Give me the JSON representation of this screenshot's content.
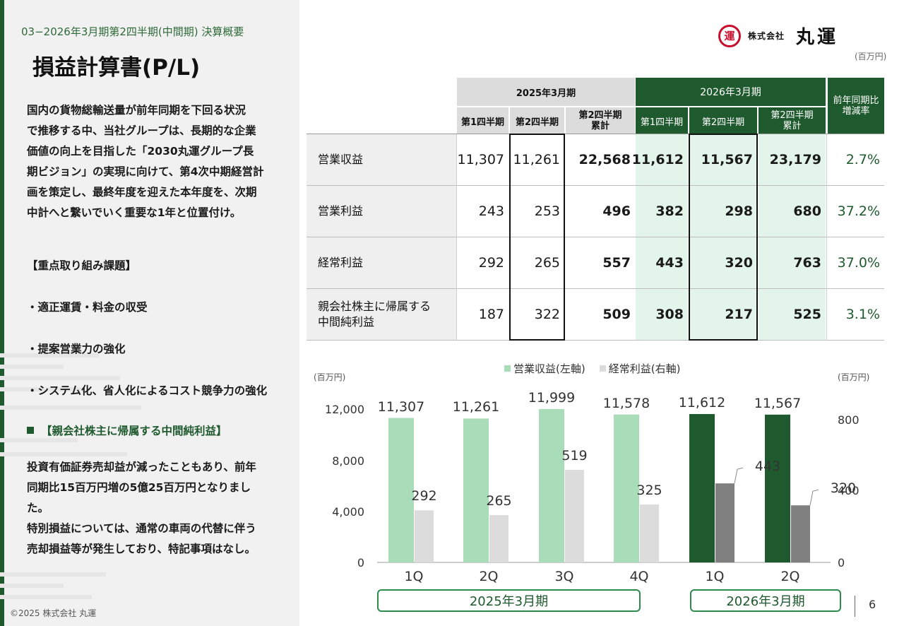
{
  "header": {
    "section_label": "03−2026年3月期第2四半期(中間期) 決算概要",
    "title": "損益計算書(P/L)",
    "logo_mark": "運",
    "company_prefix": "株式会社",
    "company_name": "丸運",
    "unit": "(百万円)"
  },
  "left": {
    "intro_lines": [
      "国内の貨物総輸送量が前年同期を下回る状況",
      "で推移する中、当社グループは、長期的な企業",
      "価値の向上を目指した「2030丸運グループ長",
      "期ビジョン」の実現に向けて、第4次中期経営計",
      "画を策定し、最終年度を迎えた本年度を、次期",
      "中計へと繋いでいく重要な1年と位置付け。"
    ],
    "focus_heading": "【重点取り組み課題】",
    "focus_items": [
      "・適正運賃・料金の収受",
      "・提案営業力の強化",
      "・システム化、省人化によるコスト競争力の強化"
    ],
    "highlight_heading": "【親会社株主に帰属する中間純利益】",
    "detail_lines": [
      "投資有価証券売却益が減ったこともあり、前年",
      "同期比15百万円増の5億25百万円となりまし",
      "た。",
      "特別損益については、通常の車両の代替に伴う",
      "売却損益等が発生しており、特記事項はなし。"
    ],
    "copyright": "©2025 株式会社 丸運"
  },
  "table": {
    "period_prev": "2025年3月期",
    "period_curr": "2026年3月期",
    "yoy_header_1": "前年同期比",
    "yoy_header_2": "増減率",
    "sub_q1": "第1四半期",
    "sub_q2": "第2四半期",
    "sub_cum_1": "第2四半期",
    "sub_cum_2": "累計",
    "rows": [
      {
        "label_1": "営業収益",
        "label_2": "",
        "prev_q1": "11,307",
        "prev_q2": "11,261",
        "prev_cum": "22,568",
        "curr_q1": "11,612",
        "curr_q2": "11,567",
        "curr_cum": "23,179",
        "yoy": "2.7%"
      },
      {
        "label_1": "営業利益",
        "label_2": "",
        "prev_q1": "243",
        "prev_q2": "253",
        "prev_cum": "496",
        "curr_q1": "382",
        "curr_q2": "298",
        "curr_cum": "680",
        "yoy": "37.2%"
      },
      {
        "label_1": "経常利益",
        "label_2": "",
        "prev_q1": "292",
        "prev_q2": "265",
        "prev_cum": "557",
        "curr_q1": "443",
        "curr_q2": "320",
        "curr_cum": "763",
        "yoy": "37.0%"
      },
      {
        "label_1": "親会社株主に帰属する",
        "label_2": "中間純利益",
        "prev_q1": "187",
        "prev_q2": "322",
        "prev_cum": "509",
        "curr_q1": "308",
        "curr_q2": "217",
        "curr_cum": "525",
        "yoy": "3.1%"
      }
    ]
  },
  "chart_data": {
    "type": "bar",
    "categories": [
      "1Q",
      "2Q",
      "3Q",
      "4Q",
      "1Q",
      "2Q"
    ],
    "period_groups": [
      "2025年3月期",
      "2026年3月期"
    ],
    "series": [
      {
        "name": "営業収益(左軸)",
        "axis": "left",
        "values": [
          11307,
          11261,
          11999,
          11578,
          11612,
          11567
        ],
        "value_labels": [
          "11,307",
          "11,261",
          "11,999",
          "11,578",
          "11,612",
          "11,567"
        ],
        "colors": [
          "#a9dcb9",
          "#a9dcb9",
          "#a9dcb9",
          "#a9dcb9",
          "#1f5a2e",
          "#1f5a2e"
        ]
      },
      {
        "name": "経常利益(右軸)",
        "axis": "right",
        "values": [
          292,
          265,
          519,
          325,
          443,
          320
        ],
        "value_labels": [
          "292",
          "265",
          "519",
          "325",
          "443",
          "320"
        ],
        "colors": [
          "#dcdcdc",
          "#dcdcdc",
          "#dcdcdc",
          "#dcdcdc",
          "#808080",
          "#808080"
        ]
      }
    ],
    "legend_colors": [
      "#a9dcb9",
      "#dcdcdc"
    ],
    "left_axis": {
      "unit": "(百万円)",
      "ylim": [
        0,
        12000
      ],
      "ticks": [
        "12,000",
        "8,000",
        "4,000",
        "0"
      ]
    },
    "right_axis": {
      "unit": "(百万円)",
      "ylim": [
        0,
        800
      ],
      "ticks": [
        "800",
        "400",
        "0"
      ]
    },
    "legend_position": "top"
  },
  "footer": {
    "page_number": "6"
  }
}
